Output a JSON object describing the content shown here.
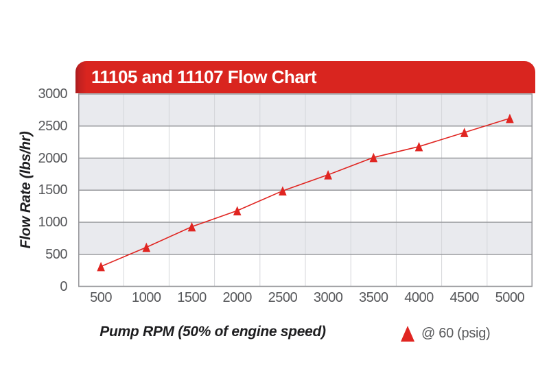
{
  "page": {
    "background": "#ffffff"
  },
  "header": {
    "title": "11105 and 11107 Flow Chart",
    "bar_color": "#d9251f",
    "bar_edge_color": "#a81b1e",
    "text_color": "#ffffff"
  },
  "axes": {
    "x_title": "Pump RPM (50% of engine speed)",
    "y_title": "Flow Rate (lbs/hr)"
  },
  "legend": {
    "label": "@ 60 (psig)",
    "marker": "triangle-up",
    "marker_color": "#e02521"
  },
  "chart_data": {
    "type": "line",
    "title": "11105 and 11107 Flow Chart",
    "xlabel": "Pump RPM (50% of engine speed)",
    "ylabel": "Flow Rate (lbs/hr)",
    "categories": [
      500,
      1000,
      1500,
      2000,
      2500,
      3000,
      3500,
      4000,
      4500,
      5000
    ],
    "series": [
      {
        "name": "@ 60 (psig)",
        "marker": "triangle-up",
        "color": "#e02521",
        "values": [
          310,
          610,
          930,
          1180,
          1490,
          1740,
          2010,
          2180,
          2400,
          2620
        ]
      }
    ],
    "ylim": [
      0,
      3000
    ],
    "yticks": [
      0,
      500,
      1000,
      1500,
      2000,
      2500,
      3000
    ],
    "grid": {
      "horizontal_bands": true,
      "band_fill": "#e9eaee",
      "band_alt_fill": "#ffffff",
      "hline_color": "#96979b",
      "vline_color": "#d4d5d9",
      "border_color": "#96979b"
    },
    "legend_position": "bottom-right"
  }
}
